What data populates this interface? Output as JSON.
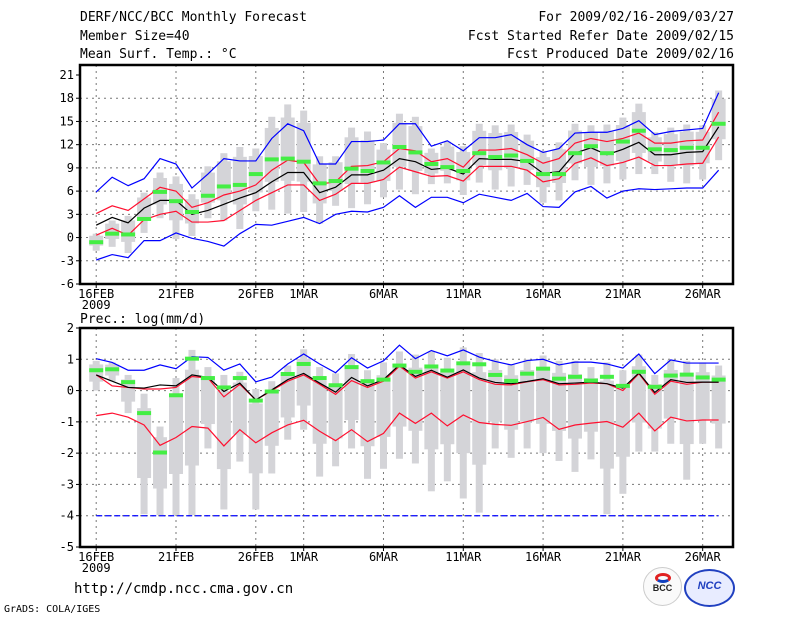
{
  "header": {
    "title": "DERF/NCC/BCC Monthly Forecast",
    "member_size": "Member Size=40",
    "variable": "Mean Surf. Temp.: °C",
    "period": "For 2009/02/16-2009/03/27",
    "started": "Fcst Started Refer Date 2009/02/15",
    "produced": "Fcst Produced Date 2009/02/16"
  },
  "footer": {
    "url": "http://cmdp.ncc.cma.gov.cn",
    "credit": "GrADS: COLA/IGES",
    "logo_bcc": "BCC",
    "logo_ncc": "NCC"
  },
  "colors": {
    "mean": "#000000",
    "std": "#ff1030",
    "extreme": "#0000ff",
    "median": "#44ee44",
    "box": "#d4d4d8"
  },
  "chart_data": [
    {
      "type": "line",
      "title": "Mean Surf. Temp.: °C",
      "ylabel": "",
      "ylim": [
        -6,
        21
      ],
      "yticks": [
        -6,
        -3,
        0,
        3,
        6,
        9,
        12,
        15,
        18,
        21
      ],
      "xtick_days": [
        0,
        5,
        10,
        13,
        18,
        23,
        28,
        33,
        38
      ],
      "xtick_labels": [
        "16FEB",
        "21FEB",
        "26FEB",
        "1MAR",
        "6MAR",
        "11MAR",
        "16MAR",
        "21MAR",
        "26MAR"
      ],
      "year_label": "2009",
      "days": 40,
      "series": [
        {
          "name": "mean",
          "values": [
            1.6,
            2.6,
            1.9,
            3.8,
            4.8,
            4.8,
            3.0,
            3.5,
            4.3,
            5.1,
            5.8,
            7.2,
            8.4,
            8.4,
            5.8,
            6.5,
            8.1,
            8.1,
            8.7,
            10.2,
            9.8,
            8.8,
            9.0,
            8.2,
            10.2,
            10.1,
            10.1,
            9.8,
            8.3,
            8.5,
            10.9,
            11.6,
            10.7,
            11.4,
            12.3,
            10.7,
            10.7,
            11.0,
            11.1,
            14.3
          ]
        },
        {
          "name": "mean+std",
          "values": [
            3.1,
            4.1,
            3.5,
            5.0,
            6.5,
            6.0,
            3.9,
            4.5,
            5.5,
            6.0,
            6.8,
            8.7,
            10.0,
            9.7,
            6.9,
            7.2,
            9.2,
            9.3,
            9.8,
            11.5,
            11.2,
            9.8,
            10.2,
            9.1,
            11.3,
            11.3,
            11.5,
            10.7,
            9.6,
            10.2,
            12.2,
            12.8,
            12.4,
            12.8,
            13.5,
            12.2,
            12.2,
            12.5,
            12.6,
            16.2
          ]
        },
        {
          "name": "mean-std",
          "values": [
            0.3,
            1.2,
            0.3,
            2.3,
            3.0,
            3.4,
            2.0,
            2.0,
            2.2,
            3.5,
            4.8,
            5.8,
            6.8,
            6.8,
            4.8,
            5.6,
            7.0,
            7.0,
            7.5,
            9.1,
            8.5,
            7.9,
            8.0,
            7.3,
            9.2,
            9.2,
            9.2,
            8.7,
            7.2,
            7.6,
            9.6,
            10.3,
            9.3,
            9.7,
            10.4,
            9.3,
            9.3,
            9.5,
            9.6,
            13.0
          ]
        },
        {
          "name": "max",
          "values": [
            5.9,
            7.8,
            6.7,
            7.6,
            10.2,
            9.5,
            6.4,
            8.2,
            10.2,
            9.9,
            9.9,
            12.8,
            14.7,
            13.8,
            9.5,
            9.5,
            12.4,
            12.4,
            12.6,
            14.7,
            14.7,
            11.8,
            12.5,
            11.2,
            12.9,
            12.9,
            13.3,
            12.0,
            11.0,
            11.5,
            13.5,
            13.6,
            13.6,
            14.1,
            15.1,
            13.3,
            13.7,
            13.9,
            14.1,
            18.7
          ]
        },
        {
          "name": "min",
          "values": [
            -2.9,
            -2.2,
            -2.6,
            -0.4,
            -0.4,
            0.6,
            -0.1,
            -0.5,
            -1.1,
            0.5,
            1.7,
            1.6,
            2.1,
            2.6,
            1.8,
            3.0,
            3.4,
            3.3,
            3.9,
            5.4,
            3.9,
            5.2,
            5.2,
            4.5,
            5.6,
            5.2,
            4.8,
            5.7,
            4.0,
            3.9,
            5.9,
            6.6,
            5.1,
            6.0,
            6.3,
            6.2,
            6.3,
            6.4,
            6.4,
            8.7
          ]
        },
        {
          "name": "observed",
          "values": [
            -0.6,
            0.5,
            0.4,
            2.4,
            5.9,
            4.7,
            3.3,
            5.4,
            6.6,
            6.8,
            8.2,
            10.1,
            10.2,
            9.8,
            7.0,
            7.3,
            8.9,
            8.6,
            9.7,
            11.7,
            11.0,
            9.5,
            9.1,
            8.6,
            10.9,
            10.4,
            10.6,
            9.9,
            8.2,
            8.2,
            10.9,
            11.8,
            10.9,
            12.4,
            13.8,
            11.4,
            11.3,
            11.6,
            11.6,
            14.7
          ]
        }
      ],
      "box_low": [
        -1.7,
        -1.2,
        -2.0,
        0.6,
        2.5,
        -0.2,
        0.2,
        2.5,
        2.2,
        1.1,
        3.4,
        3.6,
        3.1,
        3.3,
        1.8,
        4.1,
        3.8,
        4.3,
        5.2,
        6.2,
        5.6,
        6.9,
        7.0,
        5.5,
        7.1,
        6.2,
        6.6,
        6.8,
        4.5,
        4.8,
        7.4,
        6.8,
        7.0,
        7.5,
        8.2,
        8.2,
        7.2,
        7.0,
        7.5,
        10.0
      ],
      "box_high": [
        0.5,
        2.2,
        2.8,
        5.8,
        8.4,
        7.9,
        5.6,
        9.2,
        10.9,
        11.7,
        11.5,
        15.6,
        17.2,
        16.4,
        10.5,
        10.5,
        14.2,
        13.7,
        12.2,
        16.0,
        15.6,
        11.5,
        12.4,
        11.8,
        14.7,
        14.5,
        14.6,
        13.3,
        11.2,
        12.3,
        14.7,
        14.5,
        14.6,
        15.5,
        17.3,
        13.6,
        14.2,
        14.6,
        14.5,
        19.0
      ]
    },
    {
      "type": "line",
      "title": "Prec.: log(mm/d)",
      "ylim": [
        -5,
        2
      ],
      "yticks": [
        -5,
        -4,
        -3,
        -2,
        -1,
        0,
        1,
        2
      ],
      "xtick_days": [
        0,
        5,
        10,
        13,
        18,
        23,
        28,
        33,
        38
      ],
      "xtick_labels": [
        "16FEB",
        "21FEB",
        "26FEB",
        "1MAR",
        "6MAR",
        "11MAR",
        "16MAR",
        "21MAR",
        "26MAR"
      ],
      "year_label": "2009",
      "days": 40,
      "series": [
        {
          "name": "mean",
          "values": [
            0.5,
            0.3,
            0.1,
            0.08,
            0.18,
            0.15,
            0.5,
            0.42,
            -0.03,
            0.24,
            -0.3,
            0.02,
            0.35,
            0.55,
            0.24,
            -0.05,
            0.42,
            0.15,
            0.35,
            0.82,
            0.45,
            0.65,
            0.43,
            0.66,
            0.4,
            0.26,
            0.22,
            0.29,
            0.38,
            0.22,
            0.24,
            0.27,
            0.22,
            0.08,
            0.56,
            -0.06,
            0.35,
            0.26,
            0.27,
            0.27
          ]
        },
        {
          "name": "mean+std",
          "values": [
            0.5,
            0.15,
            0.1,
            0.05,
            0.05,
            0.1,
            0.45,
            0.4,
            -0.2,
            0.2,
            -0.3,
            0.0,
            0.3,
            0.5,
            0.2,
            -0.12,
            0.32,
            0.1,
            0.3,
            0.78,
            0.4,
            0.6,
            0.4,
            0.6,
            0.35,
            0.2,
            0.18,
            0.28,
            0.35,
            0.18,
            0.2,
            0.24,
            0.22,
            0.0,
            0.54,
            -0.12,
            0.3,
            0.2,
            0.27,
            0.27
          ]
        },
        {
          "name": "mean-std",
          "values": [
            -0.8,
            -0.72,
            -0.85,
            -1.1,
            -1.75,
            -1.5,
            -1.15,
            -1.2,
            -1.77,
            -1.25,
            -1.67,
            -1.35,
            -1.1,
            -0.95,
            -1.3,
            -1.6,
            -1.25,
            -1.63,
            -1.37,
            -0.72,
            -1.05,
            -0.72,
            -1.13,
            -0.78,
            -1.02,
            -1.08,
            -1.11,
            -0.99,
            -0.86,
            -1.24,
            -1.1,
            -1.04,
            -0.99,
            -1.17,
            -0.72,
            -1.29,
            -0.85,
            -0.97,
            -0.94,
            -0.94
          ]
        },
        {
          "name": "max",
          "values": [
            1.02,
            0.9,
            0.65,
            0.65,
            0.82,
            0.7,
            1.08,
            1.06,
            0.65,
            0.85,
            0.28,
            0.43,
            0.85,
            1.17,
            0.85,
            0.57,
            1.05,
            0.72,
            0.95,
            1.45,
            1.02,
            1.28,
            1.11,
            1.3,
            1.07,
            0.93,
            0.82,
            0.96,
            1.0,
            0.82,
            0.91,
            0.91,
            0.85,
            0.72,
            1.17,
            0.54,
            0.98,
            0.88,
            0.88,
            0.88
          ]
        },
        {
          "name": "min",
          "values": [
            -4,
            -4,
            -4,
            -4,
            -4,
            -4,
            -4,
            -4,
            -4,
            -4,
            -4,
            -4,
            -4,
            -4,
            -4,
            -4,
            -4,
            -4,
            -4,
            -4,
            -4,
            -4,
            -4,
            -4,
            -4,
            -4,
            -4,
            -4,
            -4,
            -4,
            -4,
            -4,
            -4,
            -4,
            -4,
            -4,
            -4,
            -4,
            -4,
            -4
          ]
        },
        {
          "name": "observed",
          "values": [
            0.65,
            0.68,
            0.27,
            -0.72,
            -1.98,
            -0.15,
            1.02,
            0.4,
            0.1,
            0.4,
            -0.32,
            -0.03,
            0.53,
            0.85,
            0.4,
            0.17,
            0.75,
            0.3,
            0.35,
            0.8,
            0.6,
            0.77,
            0.64,
            0.87,
            0.84,
            0.5,
            0.31,
            0.54,
            0.7,
            0.38,
            0.44,
            0.32,
            0.44,
            0.15,
            0.6,
            0.12,
            0.48,
            0.51,
            0.42,
            0.35
          ]
        }
      ],
      "box_low": [
        0.0,
        0.3,
        -0.72,
        -3.95,
        -3.98,
        -3.98,
        -3.98,
        -1.85,
        -3.8,
        -2.27,
        -3.8,
        -2.65,
        -1.57,
        -1.25,
        -2.75,
        -2.42,
        -1.85,
        -2.82,
        -2.5,
        -2.18,
        -2.33,
        -3.22,
        -2.9,
        -3.45,
        -3.9,
        -1.85,
        -2.15,
        -1.85,
        -2.0,
        -2.25,
        -2.6,
        -2.2,
        -3.95,
        -3.3,
        -1.95,
        -1.95,
        -1.7,
        -2.85,
        -1.7,
        -1.85
      ],
      "box_high": [
        0.95,
        0.9,
        0.5,
        -0.1,
        -1.15,
        0.4,
        1.3,
        0.75,
        0.5,
        0.6,
        0.05,
        0.3,
        0.8,
        1.32,
        0.75,
        0.55,
        1.17,
        0.65,
        0.9,
        1.25,
        1.15,
        1.25,
        1.05,
        1.38,
        1.2,
        1.0,
        0.85,
        1.0,
        1.12,
        0.95,
        0.95,
        0.75,
        0.9,
        0.65,
        1.15,
        0.5,
        0.98,
        0.95,
        0.9,
        0.8
      ]
    }
  ]
}
